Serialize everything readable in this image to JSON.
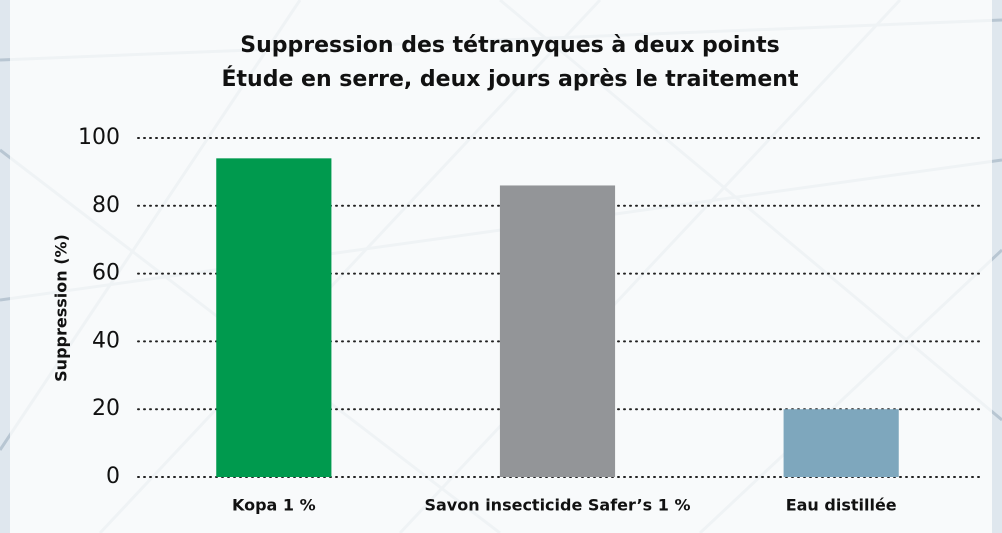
{
  "chart_data": {
    "type": "bar",
    "title": "Suppression des tétranyques à deux points",
    "subtitle": "Étude en serre, deux jours après le traitement",
    "y_label": "Suppression (%)",
    "categories": [
      "Kopa 1 %",
      "Savon insecticide Safer’s 1 %",
      "Eau distillée"
    ],
    "values": [
      94,
      86,
      20
    ],
    "colors": [
      "#009a4e",
      "#939598",
      "#7ea7bd"
    ],
    "ylim": [
      0,
      100
    ],
    "yticks": [
      0,
      20,
      40,
      60,
      80,
      100
    ],
    "grid": true
  }
}
